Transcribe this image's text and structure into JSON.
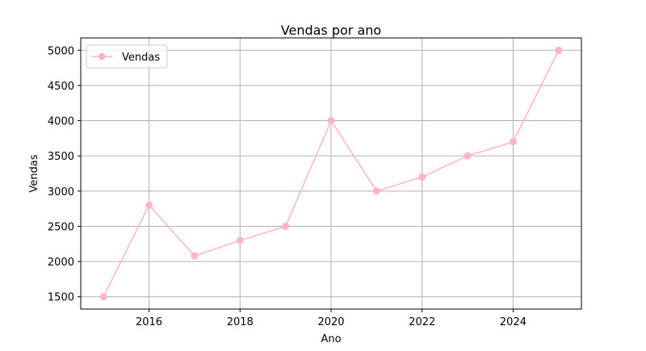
{
  "chart_data": {
    "type": "line",
    "title": "Vendas por ano",
    "xlabel": "Ano",
    "ylabel": "Vendas",
    "x": [
      2015,
      2016,
      2017,
      2018,
      2019,
      2020,
      2021,
      2022,
      2023,
      2024,
      2025
    ],
    "series": [
      {
        "name": "Vendas",
        "values": [
          1500,
          2800,
          2080,
          2300,
          2500,
          4000,
          3000,
          3200,
          3500,
          3700,
          5000
        ],
        "color": "#ffb6c1",
        "marker": "circle"
      }
    ],
    "xlim": [
      2014.5,
      2025.5
    ],
    "ylim": [
      1325,
      5175
    ],
    "xticks": [
      2016,
      2018,
      2020,
      2022,
      2024
    ],
    "yticks": [
      1500,
      2000,
      2500,
      3000,
      3500,
      4000,
      4500,
      5000
    ],
    "grid": true,
    "legend_position": "upper-left"
  }
}
